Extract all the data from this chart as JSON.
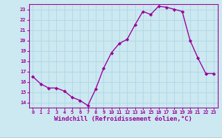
{
  "x": [
    0,
    1,
    2,
    3,
    4,
    5,
    6,
    7,
    8,
    9,
    10,
    11,
    12,
    13,
    14,
    15,
    16,
    17,
    18,
    19,
    20,
    21,
    22,
    23
  ],
  "y": [
    16.5,
    15.8,
    15.4,
    15.4,
    15.1,
    14.5,
    14.2,
    13.7,
    15.3,
    17.3,
    18.8,
    19.7,
    20.1,
    21.5,
    22.8,
    22.5,
    23.3,
    23.2,
    23.0,
    22.8,
    20.0,
    18.3,
    16.8,
    16.8
  ],
  "line_color": "#990099",
  "marker": "D",
  "marker_size": 2.2,
  "bg_color": "#cce8f0",
  "grid_color": "#b0d8e8",
  "xlabel": "Windchill (Refroidissement éolien,°C)",
  "xlim": [
    -0.5,
    23.5
  ],
  "ylim": [
    13.5,
    23.5
  ],
  "yticks": [
    14,
    15,
    16,
    17,
    18,
    19,
    20,
    21,
    22,
    23
  ],
  "xticks": [
    0,
    1,
    2,
    3,
    4,
    5,
    6,
    7,
    8,
    9,
    10,
    11,
    12,
    13,
    14,
    15,
    16,
    17,
    18,
    19,
    20,
    21,
    22,
    23
  ],
  "tick_color": "#990099",
  "label_color": "#990099",
  "tick_fontsize": 5.0,
  "xlabel_fontsize": 6.5,
  "line_width": 1.0,
  "spine_color": "#990099",
  "bottom_bar_color": "#990099"
}
